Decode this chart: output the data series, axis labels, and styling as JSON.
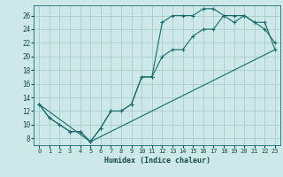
{
  "title": "",
  "xlabel": "Humidex (Indice chaleur)",
  "bg_color": "#cde8e8",
  "grid_color": "#aacccc",
  "line_color": "#1a6b6b",
  "xlim": [
    -0.5,
    23.5
  ],
  "ylim": [
    7.0,
    27.5
  ],
  "xticks": [
    0,
    1,
    2,
    3,
    4,
    5,
    6,
    7,
    8,
    9,
    10,
    11,
    12,
    13,
    14,
    15,
    16,
    17,
    18,
    19,
    20,
    21,
    22,
    23
  ],
  "yticks": [
    8,
    10,
    12,
    14,
    16,
    18,
    20,
    22,
    24,
    26
  ],
  "line1_x": [
    0,
    1,
    2,
    3,
    4,
    5,
    6,
    7,
    8,
    9,
    10,
    11,
    12,
    13,
    14,
    15,
    16,
    17,
    18,
    19,
    20,
    21,
    22,
    23
  ],
  "line1_y": [
    13,
    11,
    10,
    9,
    9,
    7.5,
    9.5,
    12,
    12,
    13,
    17,
    17,
    25,
    26,
    26,
    26,
    27,
    27,
    26,
    25,
    26,
    25,
    24,
    22
  ],
  "line2_x": [
    0,
    1,
    2,
    3,
    4,
    5,
    6,
    7,
    8,
    9,
    10,
    11,
    12,
    13,
    14,
    15,
    16,
    17,
    18,
    19,
    20,
    21,
    22,
    23
  ],
  "line2_y": [
    13,
    11,
    10,
    9,
    9,
    7.5,
    9.5,
    12,
    12,
    13,
    17,
    17,
    20,
    21,
    21,
    23,
    24,
    24,
    26,
    26,
    26,
    25,
    25,
    21
  ],
  "line3_x": [
    0,
    5,
    23
  ],
  "line3_y": [
    13,
    7.5,
    21
  ]
}
